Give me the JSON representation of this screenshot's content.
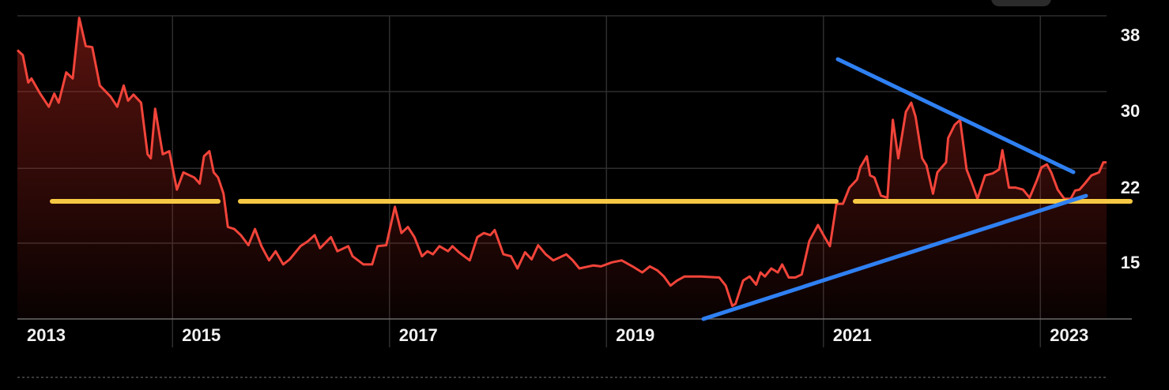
{
  "chart_data": {
    "type": "line",
    "color": "#f2443a",
    "grid": true,
    "xlim": [
      2013.57,
      2023.61
    ],
    "ylim": [
      7.5,
      37.5
    ],
    "xticks": [
      2013,
      2015,
      2017,
      2019,
      2021,
      2023
    ],
    "yticks": [
      {
        "value": 37.5,
        "label": "38"
      },
      30,
      {
        "value": 22.4,
        "label": "22"
      },
      15
    ],
    "x": [
      2013.57,
      2013.62,
      2013.67,
      2013.7,
      2013.78,
      2013.86,
      2013.91,
      2013.95,
      2014.02,
      2014.08,
      2014.14,
      2014.2,
      2014.26,
      2014.33,
      2014.43,
      2014.49,
      2014.55,
      2014.59,
      2014.64,
      2014.71,
      2014.77,
      2014.8,
      2014.84,
      2014.91,
      2014.97,
      2015.04,
      2015.1,
      2015.2,
      2015.25,
      2015.29,
      2015.34,
      2015.38,
      2015.42,
      2015.47,
      2015.51,
      2015.57,
      2015.63,
      2015.7,
      2015.76,
      2015.82,
      2015.89,
      2015.95,
      2016.02,
      2016.08,
      2016.18,
      2016.25,
      2016.31,
      2016.36,
      2016.46,
      2016.52,
      2016.62,
      2016.66,
      2016.76,
      2016.84,
      2016.89,
      2016.97,
      2017.05,
      2017.11,
      2017.17,
      2017.23,
      2017.3,
      2017.35,
      2017.4,
      2017.46,
      2017.54,
      2017.58,
      2017.64,
      2017.74,
      2017.81,
      2017.87,
      2017.93,
      2017.97,
      2018.05,
      2018.12,
      2018.18,
      2018.25,
      2018.31,
      2018.37,
      2018.44,
      2018.51,
      2018.63,
      2018.69,
      2018.75,
      2018.88,
      2018.95,
      2019.05,
      2019.14,
      2019.24,
      2019.33,
      2019.4,
      2019.47,
      2019.53,
      2019.59,
      2019.65,
      2019.72,
      2019.87,
      2020.04,
      2020.1,
      2020.16,
      2020.19,
      2020.26,
      2020.32,
      2020.38,
      2020.42,
      2020.46,
      2020.52,
      2020.58,
      2020.62,
      2020.68,
      2020.74,
      2020.8,
      2020.87,
      2020.95,
      2021.0,
      2021.06,
      2021.12,
      2021.18,
      2021.24,
      2021.31,
      2021.34,
      2021.4,
      2021.43,
      2021.47,
      2021.53,
      2021.59,
      2021.64,
      2021.69,
      2021.76,
      2021.81,
      2021.85,
      2021.91,
      2021.95,
      2022.01,
      2022.05,
      2022.13,
      2022.15,
      2022.21,
      2022.26,
      2022.32,
      2022.37,
      2022.42,
      2022.49,
      2022.56,
      2022.62,
      2022.65,
      2022.71,
      2022.77,
      2022.84,
      2022.9,
      2022.97,
      2023.01,
      2023.06,
      2023.1,
      2023.16,
      2023.22,
      2023.28,
      2023.32,
      2023.36,
      2023.41,
      2023.47,
      2023.54,
      2023.58,
      2023.61
    ],
    "values": [
      34.1,
      33.6,
      30.9,
      31.3,
      29.8,
      28.5,
      29.8,
      28.9,
      31.9,
      31.3,
      37.3,
      34.5,
      34.4,
      30.6,
      29.5,
      28.5,
      30.6,
      29.1,
      29.7,
      28.9,
      23.8,
      23.4,
      28.3,
      23.8,
      24.1,
      20.3,
      22.0,
      21.5,
      20.9,
      23.6,
      24.1,
      22.0,
      21.5,
      19.9,
      16.6,
      16.4,
      15.8,
      14.8,
      16.4,
      14.7,
      13.3,
      14.2,
      12.9,
      13.4,
      14.7,
      15.2,
      15.8,
      14.5,
      15.6,
      14.2,
      14.7,
      13.7,
      12.9,
      12.9,
      14.7,
      14.8,
      18.6,
      16.0,
      16.6,
      15.6,
      13.7,
      14.2,
      13.9,
      14.7,
      14.2,
      14.7,
      14.1,
      13.3,
      15.6,
      16.0,
      15.8,
      16.3,
      13.9,
      13.7,
      12.5,
      14.1,
      13.4,
      14.8,
      13.9,
      13.3,
      13.9,
      13.3,
      12.5,
      12.8,
      12.7,
      13.1,
      13.3,
      12.7,
      12.1,
      12.7,
      12.3,
      11.7,
      10.8,
      11.3,
      11.7,
      11.7,
      11.6,
      10.8,
      8.8,
      9.0,
      11.3,
      11.7,
      10.9,
      12.1,
      11.7,
      12.5,
      12.1,
      12.9,
      11.6,
      11.6,
      11.9,
      15.2,
      16.8,
      15.8,
      14.7,
      18.9,
      18.9,
      20.5,
      21.3,
      22.5,
      23.6,
      21.7,
      21.5,
      19.7,
      19.5,
      27.2,
      23.4,
      28.0,
      28.9,
      27.5,
      23.4,
      22.7,
      19.9,
      22.0,
      23.0,
      25.4,
      26.7,
      27.2,
      22.3,
      20.9,
      19.4,
      21.7,
      21.9,
      22.3,
      24.2,
      20.5,
      20.5,
      20.3,
      19.5,
      21.3,
      22.5,
      22.8,
      22.0,
      20.3,
      19.4,
      19.4,
      20.2,
      20.3,
      20.9,
      21.7,
      22.0,
      23.0,
      23.0
    ]
  }
}
